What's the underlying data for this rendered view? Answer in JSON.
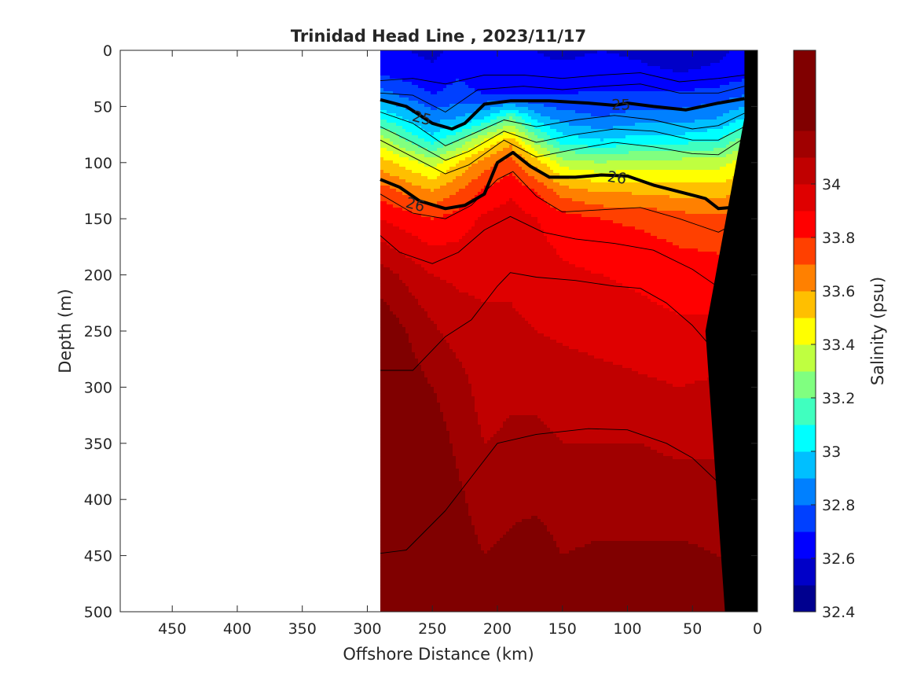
{
  "chart_data": {
    "type": "heatmap",
    "title": "Trinidad Head Line , 2023/11/17",
    "xlabel": "Offshore Distance (km)",
    "ylabel": "Depth (m)",
    "colorbar_label": "Salinity (psu)",
    "xlim": [
      490,
      0
    ],
    "ylim": [
      0,
      500
    ],
    "x_reversed": true,
    "y_reversed": true,
    "x_ticks": [
      450,
      400,
      350,
      300,
      250,
      200,
      150,
      100,
      50,
      0
    ],
    "y_ticks": [
      0,
      50,
      100,
      150,
      200,
      250,
      300,
      350,
      400,
      450,
      500
    ],
    "colorbar": {
      "range": [
        32.4,
        34.5
      ],
      "ticks": [
        32.4,
        32.6,
        32.8,
        33,
        33.2,
        33.4,
        33.6,
        33.8,
        34
      ],
      "tick_labels": [
        "32.4",
        "32.6",
        "32.8",
        "33",
        "33.2",
        "33.4",
        "33.6",
        "33.8",
        "34"
      ],
      "levels": [
        32.4,
        32.5,
        32.6,
        32.7,
        32.8,
        32.9,
        33.0,
        33.1,
        33.2,
        33.3,
        33.4,
        33.5,
        33.6,
        33.7,
        33.8,
        33.9,
        34.0,
        34.1,
        34.2,
        34.3,
        34.4,
        34.5
      ],
      "colors": [
        "#00008f",
        "#0000c8",
        "#0000ff",
        "#0040ff",
        "#0080ff",
        "#00bfff",
        "#00ffff",
        "#40ffbf",
        "#80ff80",
        "#bfff40",
        "#ffff00",
        "#ffbf00",
        "#ff8000",
        "#ff4000",
        "#ff0000",
        "#df0000",
        "#c00000",
        "#a00000",
        "#800000",
        "#800000",
        "#800000"
      ]
    },
    "section_x_range": [
      290,
      10
    ],
    "bathymetry": {
      "color": "#000000",
      "points": [
        [
          10,
          0
        ],
        [
          0,
          0
        ],
        [
          0,
          500
        ],
        [
          25,
          500
        ],
        [
          40,
          250
        ],
        [
          10,
          60
        ]
      ]
    },
    "salinity_field": {
      "x": [
        290,
        250,
        230,
        210,
        190,
        170,
        150,
        120,
        90,
        60,
        30,
        10
      ],
      "depth": [
        0,
        20,
        40,
        60,
        80,
        100,
        125,
        150,
        200,
        250,
        300,
        350,
        400,
        450,
        500
      ],
      "values": [
        [
          32.62,
          32.58,
          32.62,
          32.6,
          32.62,
          32.6,
          32.58,
          32.6,
          32.58,
          32.55,
          32.58,
          32.62
        ],
        [
          32.68,
          32.62,
          32.68,
          32.62,
          32.65,
          32.62,
          32.62,
          32.64,
          32.62,
          32.6,
          32.62,
          32.66
        ],
        [
          32.85,
          32.7,
          32.75,
          32.7,
          32.7,
          32.7,
          32.7,
          32.72,
          32.72,
          32.72,
          32.75,
          32.8
        ],
        [
          33.1,
          32.85,
          32.9,
          33.0,
          33.2,
          32.95,
          32.85,
          32.8,
          32.85,
          32.85,
          32.9,
          33.0
        ],
        [
          33.35,
          33.05,
          33.2,
          33.4,
          33.55,
          33.25,
          33.05,
          33.0,
          33.05,
          33.05,
          33.1,
          33.25
        ],
        [
          33.55,
          33.35,
          33.5,
          33.65,
          33.75,
          33.55,
          33.35,
          33.3,
          33.35,
          33.35,
          33.35,
          33.45
        ],
        [
          33.75,
          33.6,
          33.7,
          33.82,
          33.88,
          33.8,
          33.65,
          33.58,
          33.58,
          33.55,
          33.55,
          33.6
        ],
        [
          33.9,
          33.8,
          33.85,
          33.92,
          33.95,
          33.9,
          33.85,
          33.8,
          33.78,
          33.75,
          33.72,
          33.75
        ],
        [
          34.15,
          34.0,
          33.98,
          33.98,
          33.98,
          33.95,
          33.92,
          33.9,
          33.88,
          33.85,
          33.85,
          33.85
        ],
        [
          34.28,
          34.12,
          34.05,
          34.02,
          34.02,
          34.0,
          33.98,
          33.96,
          33.94,
          33.92,
          33.92,
          33.92
        ],
        [
          34.3,
          34.2,
          34.15,
          34.05,
          34.08,
          34.08,
          34.06,
          34.04,
          34.02,
          34.0,
          34.02,
          34.02
        ],
        [
          34.32,
          34.25,
          34.18,
          34.1,
          34.12,
          34.12,
          34.1,
          34.1,
          34.1,
          34.08,
          34.08,
          34.1
        ],
        [
          34.35,
          34.3,
          34.22,
          34.15,
          34.18,
          34.18,
          34.15,
          34.15,
          34.15,
          34.15,
          34.15,
          34.15
        ],
        [
          34.38,
          34.32,
          34.25,
          34.2,
          34.22,
          34.25,
          34.2,
          34.22,
          34.22,
          34.22,
          34.2,
          34.18
        ],
        [
          34.4,
          34.35,
          34.3,
          34.25,
          34.3,
          34.28,
          34.25,
          34.26,
          34.28,
          34.28,
          34.25,
          34.22
        ]
      ]
    },
    "density_contours": [
      {
        "points": [
          [
            290,
            27
          ],
          [
            265,
            25
          ],
          [
            240,
            30
          ],
          [
            210,
            22
          ],
          [
            180,
            22
          ],
          [
            150,
            25
          ],
          [
            120,
            22
          ],
          [
            90,
            20
          ],
          [
            60,
            28
          ],
          [
            30,
            25
          ],
          [
            10,
            22
          ]
        ]
      },
      {
        "points": [
          [
            290,
            38
          ],
          [
            265,
            40
          ],
          [
            240,
            55
          ],
          [
            215,
            35
          ],
          [
            180,
            32
          ],
          [
            150,
            35
          ],
          [
            120,
            32
          ],
          [
            90,
            30
          ],
          [
            60,
            38
          ],
          [
            30,
            38
          ],
          [
            10,
            32
          ]
        ]
      },
      {
        "value": "25",
        "bold": true,
        "points": [
          [
            290,
            44
          ],
          [
            270,
            50
          ],
          [
            250,
            65
          ],
          [
            235,
            70
          ],
          [
            225,
            65
          ],
          [
            210,
            48
          ],
          [
            190,
            45
          ],
          [
            160,
            45
          ],
          [
            130,
            47
          ],
          [
            110,
            49
          ],
          [
            100,
            47
          ],
          [
            80,
            50
          ],
          [
            55,
            53
          ],
          [
            30,
            47
          ],
          [
            10,
            43
          ]
        ]
      },
      {
        "points": [
          [
            290,
            55
          ],
          [
            265,
            65
          ],
          [
            240,
            85
          ],
          [
            220,
            75
          ],
          [
            195,
            62
          ],
          [
            170,
            68
          ],
          [
            140,
            62
          ],
          [
            110,
            58
          ],
          [
            80,
            62
          ],
          [
            50,
            70
          ],
          [
            30,
            67
          ],
          [
            10,
            56
          ]
        ]
      },
      {
        "points": [
          [
            290,
            68
          ],
          [
            265,
            82
          ],
          [
            240,
            98
          ],
          [
            222,
            90
          ],
          [
            195,
            72
          ],
          [
            170,
            82
          ],
          [
            140,
            75
          ],
          [
            110,
            70
          ],
          [
            80,
            72
          ],
          [
            50,
            80
          ],
          [
            30,
            80
          ],
          [
            10,
            68
          ]
        ]
      },
      {
        "points": [
          [
            290,
            80
          ],
          [
            265,
            95
          ],
          [
            240,
            110
          ],
          [
            222,
            102
          ],
          [
            195,
            80
          ],
          [
            170,
            95
          ],
          [
            140,
            88
          ],
          [
            110,
            82
          ],
          [
            80,
            86
          ],
          [
            50,
            92
          ],
          [
            30,
            93
          ],
          [
            10,
            78
          ]
        ]
      },
      {
        "value": "26",
        "bold": true,
        "points": [
          [
            290,
            115
          ],
          [
            275,
            122
          ],
          [
            260,
            134
          ],
          [
            240,
            141
          ],
          [
            225,
            138
          ],
          [
            210,
            128
          ],
          [
            200,
            100
          ],
          [
            188,
            91
          ],
          [
            175,
            103
          ],
          [
            160,
            113
          ],
          [
            140,
            113
          ],
          [
            120,
            111
          ],
          [
            100,
            112
          ],
          [
            80,
            120
          ],
          [
            60,
            126
          ],
          [
            40,
            132
          ],
          [
            30,
            141
          ],
          [
            20,
            140
          ],
          [
            10,
            130
          ]
        ]
      },
      {
        "points": [
          [
            290,
            128
          ],
          [
            265,
            145
          ],
          [
            240,
            150
          ],
          [
            220,
            138
          ],
          [
            200,
            115
          ],
          [
            188,
            108
          ],
          [
            170,
            130
          ],
          [
            150,
            144
          ],
          [
            120,
            142
          ],
          [
            90,
            140
          ],
          [
            60,
            150
          ],
          [
            30,
            162
          ],
          [
            10,
            150
          ]
        ]
      },
      {
        "points": [
          [
            290,
            165
          ],
          [
            275,
            180
          ],
          [
            250,
            190
          ],
          [
            230,
            180
          ],
          [
            210,
            160
          ],
          [
            190,
            148
          ],
          [
            165,
            162
          ],
          [
            140,
            168
          ],
          [
            110,
            172
          ],
          [
            80,
            178
          ],
          [
            50,
            195
          ],
          [
            25,
            215
          ],
          [
            12,
            210
          ]
        ]
      },
      {
        "points": [
          [
            290,
            285
          ],
          [
            265,
            285
          ],
          [
            240,
            255
          ],
          [
            220,
            240
          ],
          [
            200,
            210
          ],
          [
            190,
            198
          ],
          [
            170,
            202
          ],
          [
            140,
            205
          ],
          [
            110,
            210
          ],
          [
            90,
            212
          ],
          [
            70,
            225
          ],
          [
            50,
            245
          ],
          [
            35,
            265
          ],
          [
            27,
            272
          ]
        ]
      },
      {
        "points": [
          [
            290,
            448
          ],
          [
            270,
            445
          ],
          [
            240,
            410
          ],
          [
            220,
            380
          ],
          [
            200,
            350
          ],
          [
            170,
            342
          ],
          [
            130,
            337
          ],
          [
            100,
            338
          ],
          [
            70,
            350
          ],
          [
            50,
            363
          ],
          [
            30,
            385
          ],
          [
            25,
            390
          ]
        ]
      }
    ],
    "contour_label_positions": [
      {
        "text": "25",
        "x": 258,
        "y": 60,
        "angle": 15
      },
      {
        "text": "25",
        "x": 105,
        "y": 48,
        "angle": 0
      },
      {
        "text": "26",
        "x": 263,
        "y": 137,
        "angle": 15
      },
      {
        "text": "26",
        "x": 108,
        "y": 113,
        "angle": 8
      }
    ]
  }
}
